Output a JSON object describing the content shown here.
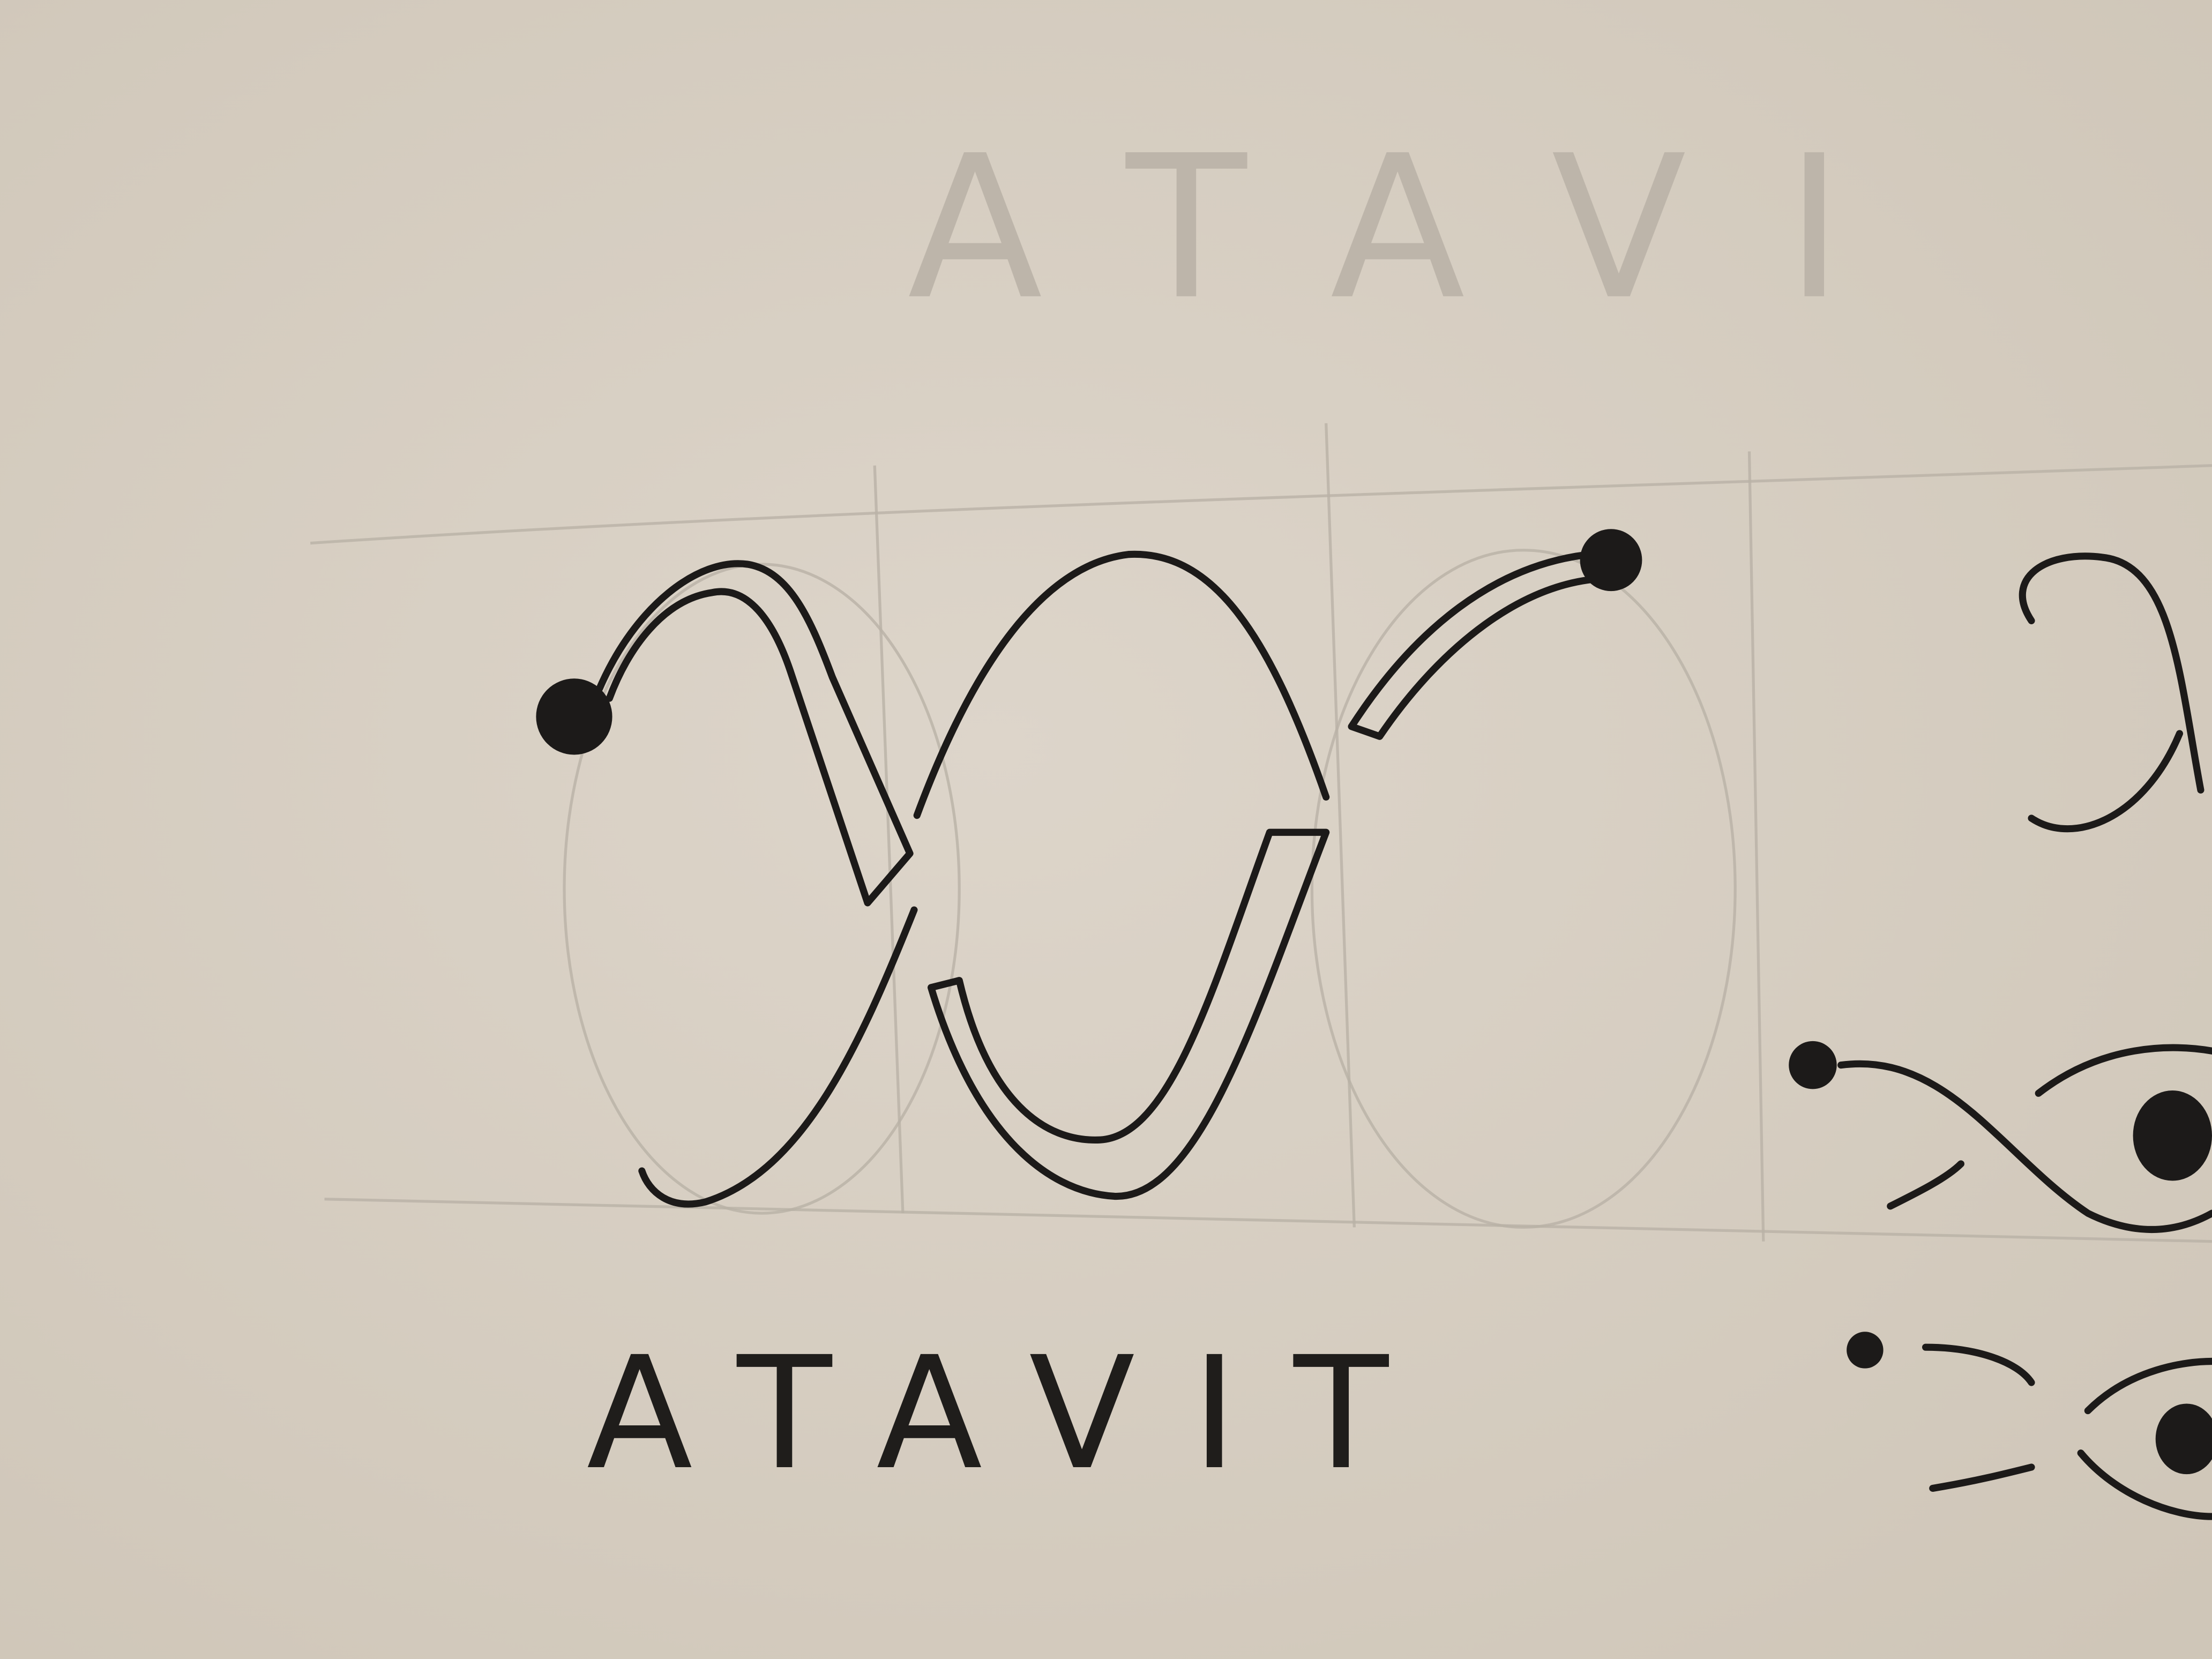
{
  "sketch": {
    "caption": "ATAVIT",
    "faint_caption": "ATAVI"
  }
}
